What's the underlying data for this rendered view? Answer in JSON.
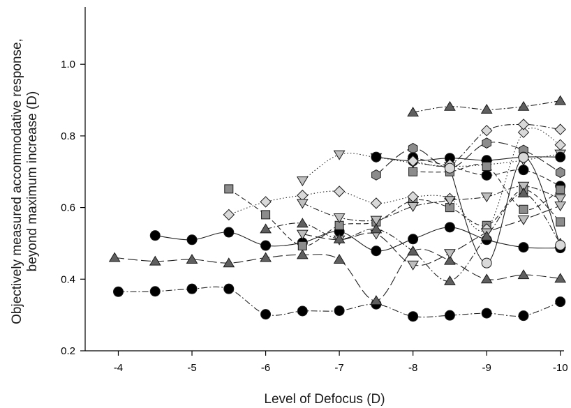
{
  "chart_data": {
    "type": "line",
    "title": "",
    "xlabel": "Level of Defocus (D)",
    "ylabel_lines": [
      "Objectively measured accommodative response,",
      "beyond maximum increase (D)"
    ],
    "xlim": [
      -3.55,
      -10.05
    ],
    "ylim": [
      0.2,
      1.16
    ],
    "x_ticks": [
      -4,
      -5,
      -6,
      -7,
      -8,
      -9,
      -10
    ],
    "x_tick_labels": [
      "-4",
      "-5",
      "-6",
      "-7",
      "-8",
      "-9",
      "-10"
    ],
    "y_ticks": [
      0.2,
      0.4,
      0.6,
      0.8,
      1.0
    ],
    "y_tick_labels": [
      "0.2",
      "0.4",
      "0.6",
      "0.8",
      "1.0"
    ],
    "grid": false,
    "legend": "none",
    "series": [
      {
        "marker": "circle",
        "fill": "#000000",
        "dash": "dashdot",
        "points": [
          [
            -4,
            0.365
          ],
          [
            -4.5,
            0.366
          ],
          [
            -5,
            0.373
          ],
          [
            -5.5,
            0.373
          ],
          [
            -6,
            0.302
          ],
          [
            -6.5,
            0.311
          ],
          [
            -7,
            0.312
          ],
          [
            -7.5,
            0.33
          ],
          [
            -8,
            0.296
          ],
          [
            -8.5,
            0.299
          ],
          [
            -9,
            0.305
          ],
          [
            -9.5,
            0.298
          ],
          [
            -10,
            0.337
          ]
        ]
      },
      {
        "marker": "triangle",
        "fill": "#5f5f5f",
        "dash": "longdash",
        "points": [
          [
            -3.95,
            0.46
          ],
          [
            -4.5,
            0.45
          ],
          [
            -5,
            0.455
          ],
          [
            -5.5,
            0.445
          ],
          [
            -6,
            0.46
          ],
          [
            -6.5,
            0.468
          ],
          [
            -7,
            0.455
          ],
          [
            -7.5,
            0.34
          ],
          [
            -8,
            0.478
          ],
          [
            -8.5,
            0.452
          ],
          [
            -9,
            0.4
          ],
          [
            -9.5,
            0.412
          ],
          [
            -10,
            0.402
          ]
        ]
      },
      {
        "marker": "circle",
        "fill": "#000000",
        "dash": "solid",
        "points": [
          [
            -4.5,
            0.522
          ],
          [
            -5,
            0.51
          ],
          [
            -5.5,
            0.531
          ],
          [
            -6,
            0.494
          ],
          [
            -6.5,
            0.502
          ],
          [
            -7,
            0.533
          ],
          [
            -7.5,
            0.479
          ],
          [
            -8,
            0.512
          ],
          [
            -8.5,
            0.545
          ],
          [
            -9,
            0.51
          ],
          [
            -9.5,
            0.489
          ],
          [
            -10,
            0.487
          ]
        ]
      },
      {
        "marker": "square",
        "fill": "#8c8c8c",
        "dash": "dash",
        "points": [
          [
            -5.5,
            0.652
          ],
          [
            -6,
            0.58
          ],
          [
            -6.5,
            0.493
          ],
          [
            -7,
            0.55
          ],
          [
            -7.5,
            0.56
          ],
          [
            -8,
            0.62
          ],
          [
            -8.5,
            0.6
          ],
          [
            -9,
            0.55
          ],
          [
            -9.5,
            0.65
          ],
          [
            -10,
            0.56
          ]
        ]
      },
      {
        "marker": "diamond",
        "fill": "#d9d9d9",
        "dash": "dot",
        "points": [
          [
            -5.5,
            0.58
          ],
          [
            -6,
            0.616
          ],
          [
            -6.5,
            0.634
          ],
          [
            -7,
            0.645
          ],
          [
            -7.5,
            0.612
          ],
          [
            -8,
            0.63
          ],
          [
            -8.5,
            0.625
          ],
          [
            -9,
            0.54
          ],
          [
            -9.5,
            0.81
          ],
          [
            -10,
            0.775
          ]
        ]
      },
      {
        "marker": "triangle-down",
        "fill": "#bfbfbf",
        "dash": "dot",
        "points": [
          [
            -6.5,
            0.675
          ],
          [
            -7,
            0.748
          ],
          [
            -7.5,
            0.74
          ],
          [
            -8,
            0.725
          ],
          [
            -8.5,
            0.715
          ],
          [
            -9,
            0.72
          ],
          [
            -9.5,
            0.732
          ],
          [
            -10,
            0.75
          ]
        ]
      },
      {
        "marker": "triangle-down",
        "fill": "#bfbfbf",
        "dash": "dashdot",
        "points": [
          [
            -6.5,
            0.612
          ],
          [
            -7,
            0.572
          ],
          [
            -7.5,
            0.565
          ],
          [
            -8,
            0.603
          ],
          [
            -8.5,
            0.62
          ],
          [
            -9,
            0.63
          ],
          [
            -9.5,
            0.66
          ],
          [
            -10,
            0.625
          ]
        ]
      },
      {
        "marker": "triangle-down",
        "fill": "#bfbfbf",
        "dash": "longdash",
        "points": [
          [
            -6.5,
            0.526
          ],
          [
            -7,
            0.51
          ],
          [
            -7.5,
            0.526
          ],
          [
            -8,
            0.44
          ],
          [
            -8.5,
            0.472
          ],
          [
            -9,
            0.53
          ],
          [
            -9.5,
            0.566
          ],
          [
            -10,
            0.605
          ]
        ]
      },
      {
        "marker": "triangle",
        "fill": "#5f5f5f",
        "dash": "dashdot",
        "points": [
          [
            -6,
            0.54
          ],
          [
            -6.5,
            0.556
          ],
          [
            -7,
            0.512
          ],
          [
            -7.5,
            0.54
          ],
          [
            -8,
            0.478
          ],
          [
            -8.5,
            0.395
          ],
          [
            -9,
            0.52
          ],
          [
            -9.5,
            0.64
          ],
          [
            -10,
            0.5
          ]
        ]
      },
      {
        "marker": "triangle",
        "fill": "#5f5f5f",
        "dash": "dashdot",
        "points": [
          [
            -8,
            0.866
          ],
          [
            -8.5,
            0.882
          ],
          [
            -9,
            0.874
          ],
          [
            -9.5,
            0.882
          ],
          [
            -10,
            0.898
          ]
        ]
      },
      {
        "marker": "hexagon",
        "fill": "#8c8c8c",
        "dash": "longdash",
        "points": [
          [
            -7.5,
            0.691
          ],
          [
            -8,
            0.765
          ],
          [
            -8.5,
            0.71
          ],
          [
            -9,
            0.78
          ],
          [
            -9.5,
            0.76
          ],
          [
            -10,
            0.698
          ]
        ]
      },
      {
        "marker": "circle",
        "fill": "#000000",
        "dash": "solid",
        "points": [
          [
            -7.5,
            0.741
          ],
          [
            -8,
            0.73
          ],
          [
            -8.5,
            0.738
          ],
          [
            -9,
            0.732
          ],
          [
            -9.5,
            0.741
          ],
          [
            -10,
            0.741
          ]
        ]
      },
      {
        "marker": "circle",
        "fill": "#000000",
        "dash": "dash",
        "points": [
          [
            -8,
            0.74
          ],
          [
            -8.5,
            0.715
          ],
          [
            -9,
            0.69
          ],
          [
            -9.5,
            0.705
          ],
          [
            -10,
            0.66
          ]
        ]
      },
      {
        "marker": "diamond",
        "fill": "#d9d9d9",
        "dash": "dashdot",
        "points": [
          [
            -8,
            0.73
          ],
          [
            -8.5,
            0.72
          ],
          [
            -9,
            0.815
          ],
          [
            -9.5,
            0.832
          ],
          [
            -10,
            0.818
          ]
        ]
      },
      {
        "marker": "square",
        "fill": "#8c8c8c",
        "dash": "dash",
        "points": [
          [
            -8,
            0.7
          ],
          [
            -8.5,
            0.7
          ],
          [
            -9,
            0.715
          ],
          [
            -9.5,
            0.595
          ],
          [
            -10,
            0.65
          ]
        ]
      },
      {
        "marker": "circle",
        "fill": "#d9d9d9",
        "dash": "solid",
        "points": [
          [
            -8.5,
            0.71
          ],
          [
            -9,
            0.445
          ],
          [
            -9.5,
            0.74
          ],
          [
            -10,
            0.495
          ]
        ]
      }
    ]
  }
}
